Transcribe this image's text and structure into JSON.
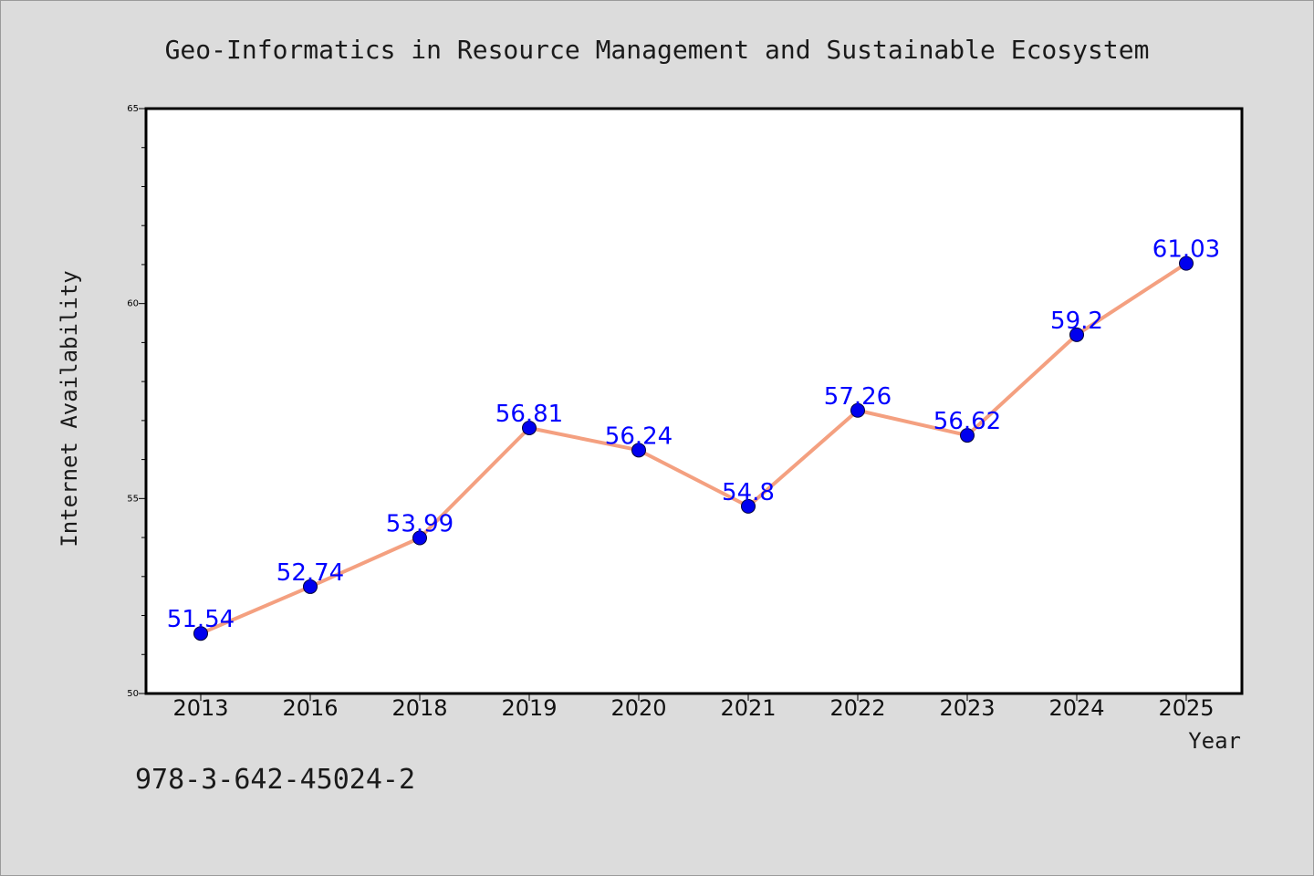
{
  "chart_data": {
    "type": "line",
    "title": "Geo-Informatics in Resource Management and Sustainable Ecosystem",
    "xlabel": "Year",
    "ylabel": "Internet Availability",
    "categories": [
      "2013",
      "2016",
      "2018",
      "2019",
      "2020",
      "2021",
      "2022",
      "2023",
      "2024",
      "2025"
    ],
    "series": [
      {
        "values": [
          51.54,
          52.74,
          53.99,
          56.81,
          56.24,
          54.8,
          57.26,
          56.62,
          59.2,
          61.03
        ],
        "line_color": "#f4a080",
        "marker_color": "#0000ee",
        "label_color": "#0000ff"
      }
    ],
    "data_labels": [
      "51.54",
      "52.74",
      "53.99",
      "56.81",
      "56.24",
      "54.8",
      "57.26",
      "56.62",
      "59.2",
      "61.03"
    ],
    "ylim": [
      50,
      65
    ],
    "yticks": [
      50,
      55,
      60,
      65
    ],
    "ytick_labels": [
      "50",
      "55",
      "60",
      "65"
    ],
    "grid": false
  },
  "footer": {
    "isbn": "978-3-642-45024-2"
  },
  "colors": {
    "background": "#dcdcdc",
    "plot_background": "#ffffff",
    "axis": "#000000"
  }
}
